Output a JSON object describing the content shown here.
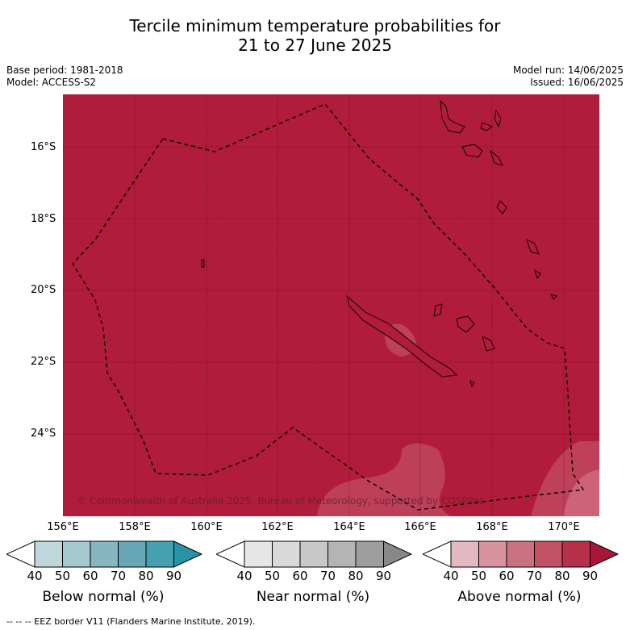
{
  "title_line1": "Tercile minimum temperature probabilities for",
  "title_line2": "21 to 27 June 2025",
  "meta_left": [
    "Base period: 1981-2018",
    "Model: ACCESS-S2"
  ],
  "meta_right": [
    "Model run: 14/06/2025",
    "Issued: 16/06/2025"
  ],
  "lat_labels": [
    "16°S",
    "18°S",
    "20°S",
    "22°S",
    "24°S"
  ],
  "lon_labels": [
    "156°E",
    "158°E",
    "160°E",
    "162°E",
    "164°E",
    "166°E",
    "168°E",
    "170°E"
  ],
  "credit": "© Commonwealth of Australia 2025, Bureau of Meteorology, supported by COSPPac",
  "colorbars": [
    {
      "label": "Below normal (%)",
      "ticks": [
        "40",
        "50",
        "60",
        "70",
        "80",
        "90"
      ],
      "colors": [
        "#ffffff",
        "#bed6dc",
        "#a6c8cf",
        "#87b6c1",
        "#67a6b5",
        "#45a0b0",
        "#2a93a6"
      ]
    },
    {
      "label": "Near normal (%)",
      "ticks": [
        "40",
        "50",
        "60",
        "70",
        "80",
        "90"
      ],
      "colors": [
        "#ffffff",
        "#e6e6e6",
        "#d9d9d9",
        "#c8c8c8",
        "#b4b4b4",
        "#9e9e9e",
        "#888888"
      ]
    },
    {
      "label": "Above normal (%)",
      "ticks": [
        "40",
        "50",
        "60",
        "70",
        "80",
        "90"
      ],
      "colors": [
        "#ffffff",
        "#e3b8c1",
        "#d8939f",
        "#cb7280",
        "#c25164",
        "#b7304a",
        "#a8173a"
      ]
    }
  ],
  "footer": "-- -- -- EEZ border V11 (Flanders Marine Institute, 2019)."
}
